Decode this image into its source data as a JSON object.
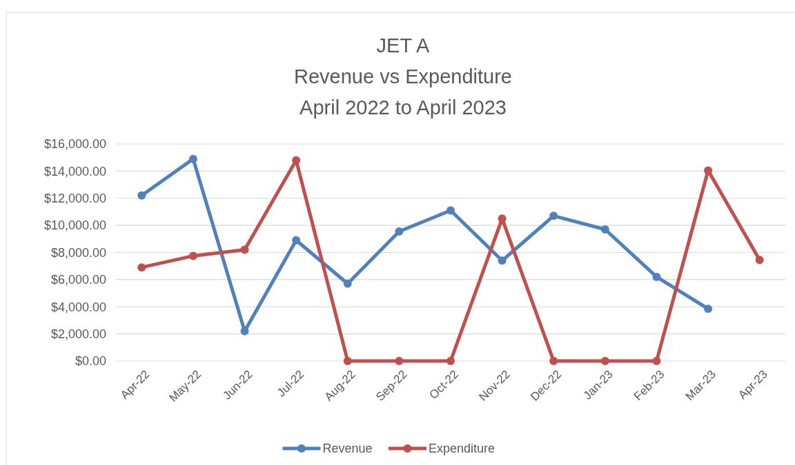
{
  "chart_data": {
    "type": "line",
    "title": "JET A\nRevenue vs Expenditure\nApril 2022 to April 2023",
    "categories": [
      "Apr-22",
      "May-22",
      "Jun-22",
      "Jul-22",
      "Aug-22",
      "Sep-22",
      "Oct-22",
      "Nov-22",
      "Dec-22",
      "Jan-23",
      "Feb-23",
      "Mar-23",
      "Apr-23"
    ],
    "series": [
      {
        "name": "Revenue",
        "color": "#4f81bd",
        "values": [
          12200,
          14900,
          2200,
          8900,
          5700,
          9550,
          11100,
          7400,
          10700,
          9700,
          6200,
          3850,
          null
        ]
      },
      {
        "name": "Expenditure",
        "color": "#c0504d",
        "values": [
          6900,
          7750,
          8200,
          14800,
          0,
          0,
          0,
          10500,
          0,
          0,
          0,
          14050,
          7450
        ]
      }
    ],
    "ylim": [
      0,
      16000
    ],
    "yticks": [
      {
        "value": 0,
        "label": "$0.00"
      },
      {
        "value": 2000,
        "label": "$2,000.00"
      },
      {
        "value": 4000,
        "label": "$4,000.00"
      },
      {
        "value": 6000,
        "label": "$6,000.00"
      },
      {
        "value": 8000,
        "label": "$8,000.00"
      },
      {
        "value": 10000,
        "label": "$10,000.00"
      },
      {
        "value": 12000,
        "label": "$12,000.00"
      },
      {
        "value": 14000,
        "label": "$14,000.00"
      },
      {
        "value": 16000,
        "label": "$16,000.00"
      }
    ],
    "grid": "y",
    "legend": "bottom",
    "marker": "circle",
    "line_style": "solid"
  }
}
